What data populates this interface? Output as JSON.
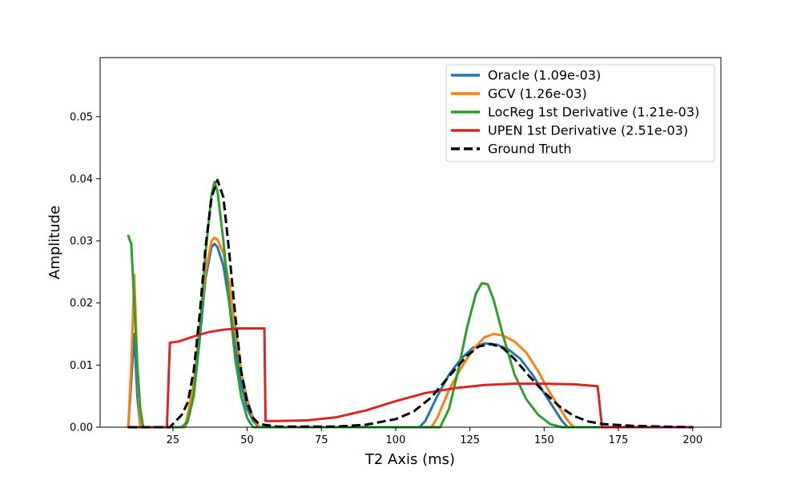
{
  "chart_data": {
    "type": "line",
    "xlabel": "T2 Axis (ms)",
    "ylabel": "Amplitude",
    "xlim": [
      0.5,
      209.5
    ],
    "ylim": [
      0,
      0.0595
    ],
    "xticks": [
      25,
      50,
      75,
      100,
      125,
      150,
      175,
      200
    ],
    "yticks": [
      0.0,
      0.01,
      0.02,
      0.03,
      0.04,
      0.05
    ],
    "ytick_labels": [
      "0.00",
      "0.01",
      "0.02",
      "0.03",
      "0.04",
      "0.05"
    ],
    "grid": false,
    "legend_position": "top-right",
    "series": [
      {
        "name": "Oracle (1.09e-03)",
        "color": "#1f77b4",
        "style": "solid",
        "points": [
          [
            10,
            0
          ],
          [
            12,
            0.015
          ],
          [
            13,
            0.005
          ],
          [
            14,
            0
          ],
          [
            29,
            0
          ],
          [
            30,
            0.001
          ],
          [
            32,
            0.005
          ],
          [
            34,
            0.014
          ],
          [
            36,
            0.024
          ],
          [
            38,
            0.029
          ],
          [
            39,
            0.0295
          ],
          [
            40,
            0.029
          ],
          [
            42,
            0.026
          ],
          [
            44,
            0.02
          ],
          [
            46,
            0.013
          ],
          [
            48,
            0.007
          ],
          [
            50,
            0.003
          ],
          [
            52,
            0.001
          ],
          [
            54,
            0
          ],
          [
            108,
            0
          ],
          [
            110,
            0.001
          ],
          [
            114,
            0.005
          ],
          [
            118,
            0.0085
          ],
          [
            122,
            0.011
          ],
          [
            126,
            0.0128
          ],
          [
            130,
            0.0135
          ],
          [
            134,
            0.0133
          ],
          [
            138,
            0.0125
          ],
          [
            142,
            0.011
          ],
          [
            146,
            0.0085
          ],
          [
            150,
            0.0055
          ],
          [
            154,
            0.0025
          ],
          [
            156,
            0.001
          ],
          [
            158,
            0
          ],
          [
            200,
            0
          ]
        ]
      },
      {
        "name": "GCV (1.26e-03)",
        "color": "#ff7f0e",
        "style": "solid",
        "points": [
          [
            10,
            0
          ],
          [
            11,
            0.01
          ],
          [
            12,
            0.0245
          ],
          [
            13,
            0.01
          ],
          [
            14,
            0
          ],
          [
            29,
            0
          ],
          [
            30,
            0.002
          ],
          [
            32,
            0.007
          ],
          [
            34,
            0.016
          ],
          [
            36,
            0.025
          ],
          [
            38,
            0.03
          ],
          [
            39,
            0.0305
          ],
          [
            40,
            0.0302
          ],
          [
            42,
            0.028
          ],
          [
            44,
            0.023
          ],
          [
            46,
            0.016
          ],
          [
            48,
            0.009
          ],
          [
            50,
            0.0045
          ],
          [
            52,
            0.0015
          ],
          [
            54,
            0
          ],
          [
            112,
            0
          ],
          [
            114,
            0.0015
          ],
          [
            118,
            0.006
          ],
          [
            122,
            0.0095
          ],
          [
            126,
            0.0125
          ],
          [
            130,
            0.0145
          ],
          [
            133,
            0.015
          ],
          [
            136,
            0.0148
          ],
          [
            140,
            0.0138
          ],
          [
            144,
            0.012
          ],
          [
            148,
            0.009
          ],
          [
            152,
            0.0055
          ],
          [
            156,
            0.0025
          ],
          [
            158,
            0.001
          ],
          [
            160,
            0
          ],
          [
            200,
            0
          ]
        ]
      },
      {
        "name": "LocReg 1st Derivative (1.21e-03)",
        "color": "#2ca02c",
        "style": "solid",
        "points": [
          [
            10,
            0.0308
          ],
          [
            11,
            0.0295
          ],
          [
            12,
            0.02
          ],
          [
            13,
            0.01
          ],
          [
            14,
            0.003
          ],
          [
            15,
            0
          ],
          [
            28,
            0
          ],
          [
            30,
            0.001
          ],
          [
            32,
            0.005
          ],
          [
            34,
            0.015
          ],
          [
            36,
            0.028
          ],
          [
            38,
            0.0375
          ],
          [
            39,
            0.0395
          ],
          [
            40,
            0.038
          ],
          [
            42,
            0.03
          ],
          [
            44,
            0.02
          ],
          [
            46,
            0.011
          ],
          [
            48,
            0.005
          ],
          [
            50,
            0.0015
          ],
          [
            52,
            0
          ],
          [
            115,
            0
          ],
          [
            118,
            0.003
          ],
          [
            121,
            0.009
          ],
          [
            124,
            0.016
          ],
          [
            127,
            0.0215
          ],
          [
            129,
            0.0232
          ],
          [
            131,
            0.023
          ],
          [
            133,
            0.0205
          ],
          [
            136,
            0.015
          ],
          [
            140,
            0.0085
          ],
          [
            144,
            0.0045
          ],
          [
            148,
            0.002
          ],
          [
            152,
            0.0005
          ],
          [
            156,
            0
          ],
          [
            200,
            0
          ]
        ]
      },
      {
        "name": "UPEN 1st Derivative (2.51e-03)",
        "color": "#d62728",
        "style": "solid",
        "points": [
          [
            10,
            0
          ],
          [
            23,
            0
          ],
          [
            24,
            0.0136
          ],
          [
            27,
            0.0138
          ],
          [
            32,
            0.0146
          ],
          [
            37,
            0.0153
          ],
          [
            42,
            0.0157
          ],
          [
            47,
            0.0159
          ],
          [
            52,
            0.0159
          ],
          [
            55.8,
            0.0159
          ],
          [
            56.2,
            0.001
          ],
          [
            60,
            0.001
          ],
          [
            70,
            0.0011
          ],
          [
            80,
            0.0016
          ],
          [
            90,
            0.0027
          ],
          [
            100,
            0.0042
          ],
          [
            110,
            0.0055
          ],
          [
            120,
            0.0063
          ],
          [
            130,
            0.0068
          ],
          [
            140,
            0.007
          ],
          [
            150,
            0.007
          ],
          [
            160,
            0.0069
          ],
          [
            168,
            0.0066
          ],
          [
            169.5,
            0
          ],
          [
            200,
            0
          ]
        ]
      },
      {
        "name": "Ground Truth",
        "color": "#000000",
        "style": "dashed",
        "points": [
          [
            10,
            0
          ],
          [
            24,
            0
          ],
          [
            26,
            0.001
          ],
          [
            28,
            0.002
          ],
          [
            30,
            0.004
          ],
          [
            32,
            0.009
          ],
          [
            34,
            0.018
          ],
          [
            36,
            0.029
          ],
          [
            38,
            0.037
          ],
          [
            40,
            0.0398
          ],
          [
            42,
            0.037
          ],
          [
            44,
            0.028
          ],
          [
            46,
            0.018
          ],
          [
            48,
            0.009
          ],
          [
            50,
            0.004
          ],
          [
            52,
            0.0015
          ],
          [
            54,
            0.0005
          ],
          [
            60,
            0.0001
          ],
          [
            80,
            0.0001
          ],
          [
            90,
            0.0004
          ],
          [
            100,
            0.0013
          ],
          [
            106,
            0.0025
          ],
          [
            112,
            0.0048
          ],
          [
            118,
            0.0082
          ],
          [
            124,
            0.0115
          ],
          [
            128,
            0.013
          ],
          [
            132,
            0.0134
          ],
          [
            136,
            0.0128
          ],
          [
            140,
            0.011
          ],
          [
            145,
            0.0082
          ],
          [
            150,
            0.0056
          ],
          [
            155,
            0.0034
          ],
          [
            160,
            0.0018
          ],
          [
            165,
            0.0009
          ],
          [
            170,
            0.0005
          ],
          [
            180,
            0.0002
          ],
          [
            190,
            0.0001
          ],
          [
            200,
            0
          ]
        ]
      }
    ]
  }
}
